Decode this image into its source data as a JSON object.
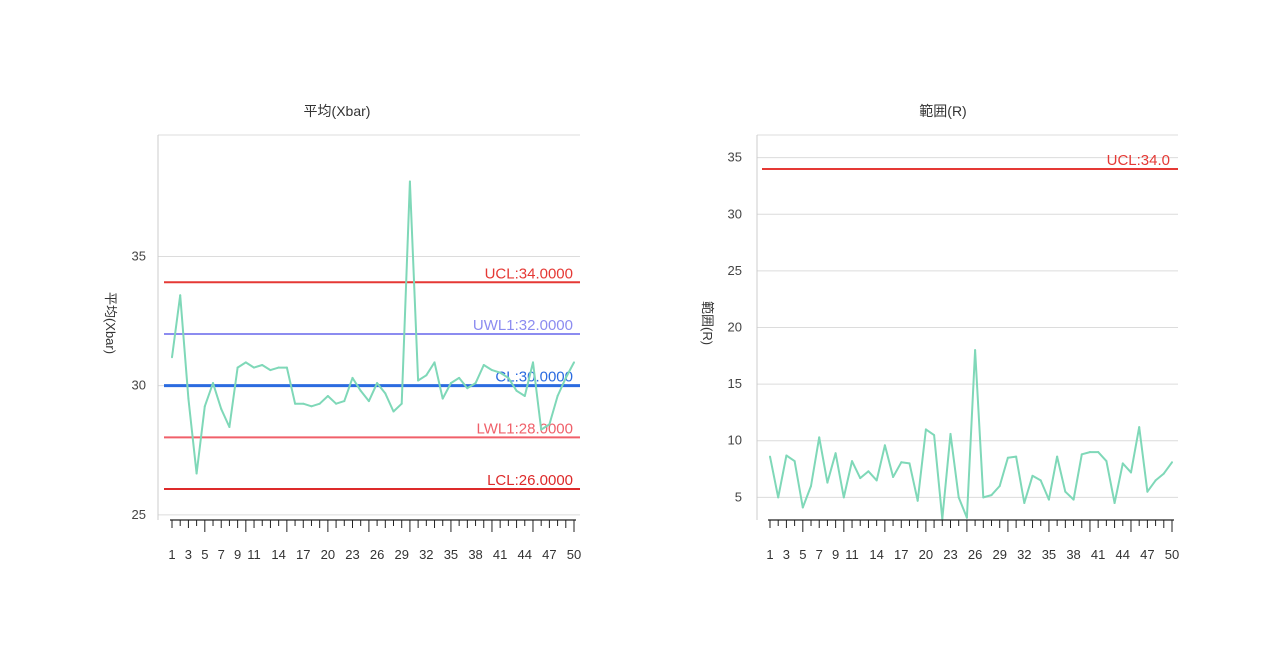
{
  "chart_data": [
    {
      "type": "line",
      "title": "平均(Xbar)",
      "ylabel": "平均(Xbar)",
      "xlabel": "",
      "ylim": [
        24.8,
        39.7
      ],
      "yticks": [
        25,
        30,
        35
      ],
      "xlim": [
        1,
        50
      ],
      "xtick_labels": [
        "1",
        "3",
        "5",
        "7",
        "9",
        "11",
        "14",
        "17",
        "20",
        "23",
        "26",
        "29",
        "32",
        "35",
        "38",
        "41",
        "44",
        "47",
        "50"
      ],
      "grid": true,
      "series_color": "#7fd8b8",
      "x": [
        1,
        2,
        3,
        4,
        5,
        6,
        7,
        8,
        9,
        10,
        11,
        12,
        13,
        14,
        15,
        16,
        17,
        18,
        19,
        20,
        21,
        22,
        23,
        24,
        25,
        26,
        27,
        28,
        29,
        30,
        31,
        32,
        33,
        34,
        35,
        36,
        37,
        38,
        39,
        40,
        41,
        42,
        43,
        44,
        45,
        46,
        47,
        48,
        49,
        50
      ],
      "values": [
        31.1,
        33.5,
        29.5,
        26.6,
        29.2,
        30.1,
        29.1,
        28.4,
        30.7,
        30.9,
        30.7,
        30.8,
        30.6,
        30.7,
        30.7,
        29.3,
        29.3,
        29.2,
        29.3,
        29.6,
        29.3,
        29.4,
        30.3,
        29.8,
        29.4,
        30.1,
        29.7,
        29.0,
        29.3,
        37.9,
        30.2,
        30.4,
        30.9,
        29.5,
        30.1,
        30.3,
        29.9,
        30.1,
        30.8,
        30.6,
        30.5,
        30.3,
        29.8,
        29.6,
        30.9,
        28.3,
        28.5,
        29.6,
        30.3,
        30.9
      ],
      "control_lines": [
        {
          "label": "UCL:34.0000",
          "value": 34,
          "color": "#e53935"
        },
        {
          "label": "UWL1:32.0000",
          "value": 32,
          "color": "#8c8cf0"
        },
        {
          "label": "CL:30.0000",
          "value": 30,
          "color": "#2b6be0"
        },
        {
          "label": "LWL1:28.0000",
          "value": 28,
          "color": "#f0606a"
        },
        {
          "label": "LCL:26.0000",
          "value": 26,
          "color": "#dd2a2a"
        }
      ]
    },
    {
      "type": "line",
      "title": "範囲(R)",
      "ylabel": "範囲(R)",
      "xlabel": "",
      "ylim": [
        3,
        37
      ],
      "yticks": [
        5,
        10,
        15,
        20,
        25,
        30,
        35
      ],
      "xlim": [
        1,
        50
      ],
      "xtick_labels": [
        "1",
        "3",
        "5",
        "7",
        "9",
        "11",
        "14",
        "17",
        "20",
        "23",
        "26",
        "29",
        "32",
        "35",
        "38",
        "41",
        "44",
        "47",
        "50"
      ],
      "grid": true,
      "series_color": "#7fd8b8",
      "x": [
        1,
        2,
        3,
        4,
        5,
        6,
        7,
        8,
        9,
        10,
        11,
        12,
        13,
        14,
        15,
        16,
        17,
        18,
        19,
        20,
        21,
        22,
        23,
        24,
        25,
        26,
        27,
        28,
        29,
        30,
        31,
        32,
        33,
        34,
        35,
        36,
        37,
        38,
        39,
        40,
        41,
        42,
        43,
        44,
        45,
        46,
        47,
        48,
        49,
        50
      ],
      "values": [
        8.6,
        5.0,
        8.7,
        8.2,
        4.1,
        6.0,
        10.3,
        6.3,
        8.9,
        5.0,
        8.2,
        6.7,
        7.3,
        6.5,
        9.6,
        6.8,
        8.1,
        8.0,
        4.7,
        11.0,
        10.5,
        3.1,
        10.6,
        5.0,
        3.2,
        18.0,
        5.0,
        5.2,
        6.0,
        8.5,
        8.6,
        4.5,
        6.9,
        6.5,
        4.8,
        8.6,
        5.5,
        4.8,
        8.8,
        9.0,
        9.0,
        8.2,
        4.5,
        8.0,
        7.2,
        11.2,
        5.5,
        6.5,
        7.1,
        8.1
      ],
      "control_lines": [
        {
          "label": "UCL:34.0",
          "value": 34,
          "color": "#e53935"
        }
      ]
    }
  ]
}
